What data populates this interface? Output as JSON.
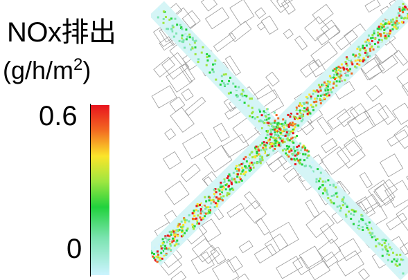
{
  "legend": {
    "title": "NOx排出",
    "unit_prefix": "(g/h/m",
    "unit_sup": "2",
    "unit_suffix": ")",
    "max_label": "0.6",
    "min_label": "0"
  },
  "colors": {
    "scale": [
      "#e8141e",
      "#f26420",
      "#fbe52a",
      "#9ee640",
      "#21d23d",
      "#7be3b0",
      "#ccf4ff"
    ],
    "road": "#d5f5f6",
    "building_line": "#9a9a9a"
  }
}
